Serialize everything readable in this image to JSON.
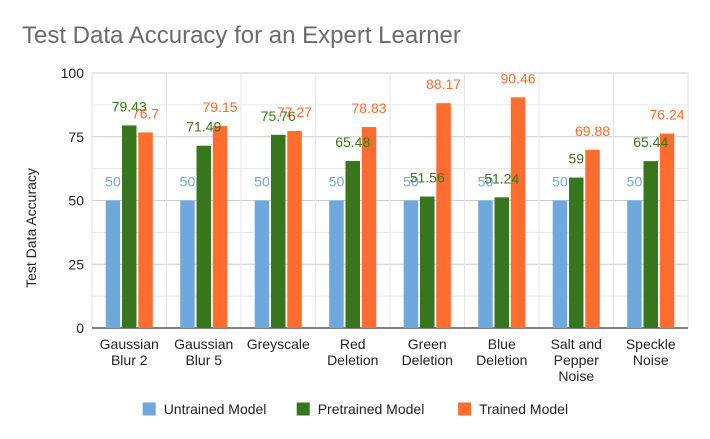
{
  "chart_data": {
    "type": "bar",
    "title": "Test Data Accuracy for an Expert Learner",
    "xlabel": "",
    "ylabel": "Test Data Accuracy",
    "ylim": [
      0,
      100
    ],
    "yticks": [
      0,
      25,
      50,
      75,
      100
    ],
    "grid": true,
    "legend_position": "bottom",
    "categories": [
      [
        "Gaussian",
        "Blur 2"
      ],
      [
        "Gaussian",
        "Blur 5"
      ],
      [
        "Greyscale"
      ],
      [
        "Red",
        "Deletion"
      ],
      [
        "Green",
        "Deletion"
      ],
      [
        "Blue",
        "Deletion"
      ],
      [
        "Salt and",
        "Pepper",
        "Noise"
      ],
      [
        "Speckle",
        "Noise"
      ]
    ],
    "series": [
      {
        "name": "Untrained Model",
        "color": "#6fa8dc",
        "values": [
          50,
          50,
          50,
          50,
          50,
          50,
          50,
          50
        ],
        "labels": [
          "50",
          "50",
          "50",
          "50",
          "50",
          "50",
          "50",
          "50"
        ]
      },
      {
        "name": "Pretrained Model",
        "color": "#38761d",
        "values": [
          79.43,
          71.49,
          75.76,
          65.48,
          51.56,
          51.24,
          59,
          65.44
        ],
        "labels": [
          "79.43",
          "71.49",
          "75.76",
          "65.48",
          "51.56",
          "51.24",
          "59",
          "65.44"
        ]
      },
      {
        "name": "Trained Model",
        "color": "#ff6d2e",
        "values": [
          76.7,
          79.15,
          77.27,
          78.83,
          88.17,
          90.46,
          69.88,
          76.24
        ],
        "labels": [
          "76.7",
          "79.15",
          "77.27",
          "78.83",
          "88.17",
          "90.46",
          "69.88",
          "76.24"
        ]
      }
    ]
  }
}
